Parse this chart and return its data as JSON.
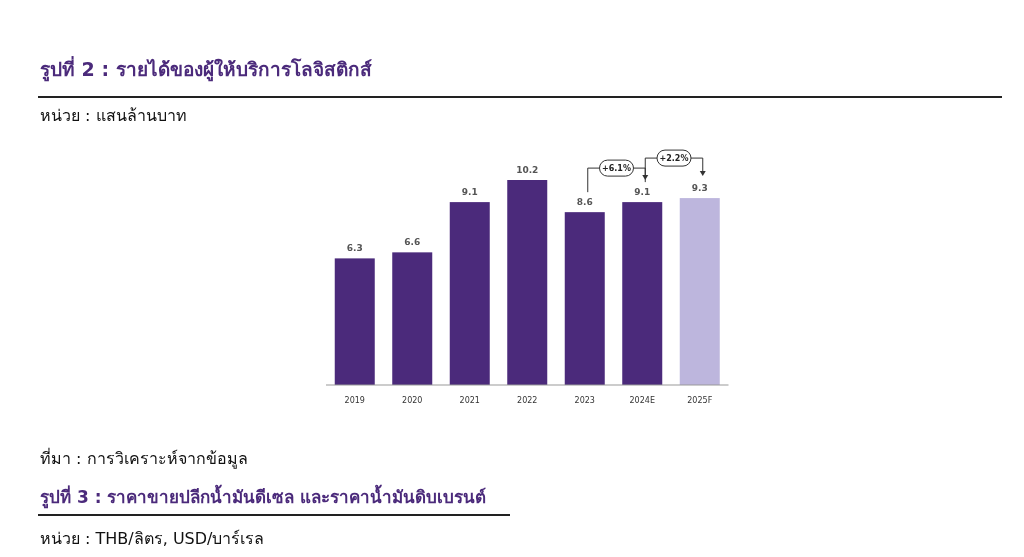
{
  "chart_data": {
    "type": "bar",
    "title": "รูปที่ 2 : รายได้ของผู้ให้บริการโลจิสติกส์",
    "subtitle": "หน่วย : แสนล้านบาท",
    "categories": [
      "2019",
      "2020",
      "2021",
      "2022",
      "2023",
      "2024E",
      "2025F"
    ],
    "values": [
      6.3,
      6.6,
      9.1,
      10.2,
      8.6,
      9.1,
      9.3
    ],
    "colors": [
      "#4b2a7b",
      "#4b2a7b",
      "#4b2a7b",
      "#4b2a7b",
      "#4b2a7b",
      "#4b2a7b",
      "#bdb6dd"
    ],
    "data_labels": true,
    "annotations": [
      "+6.1%",
      "+2.2%",
      "ที่มา : การวิเคราะห์จากข้อมูล",
      "รูปที่ 3 : ราคาขายปลีกน้ำมันดีเซล และราคาน้ำมันดิบเบรนต์",
      "หน่วย : THB/ลิตร, USD/บาร์เรล"
    ]
  }
}
